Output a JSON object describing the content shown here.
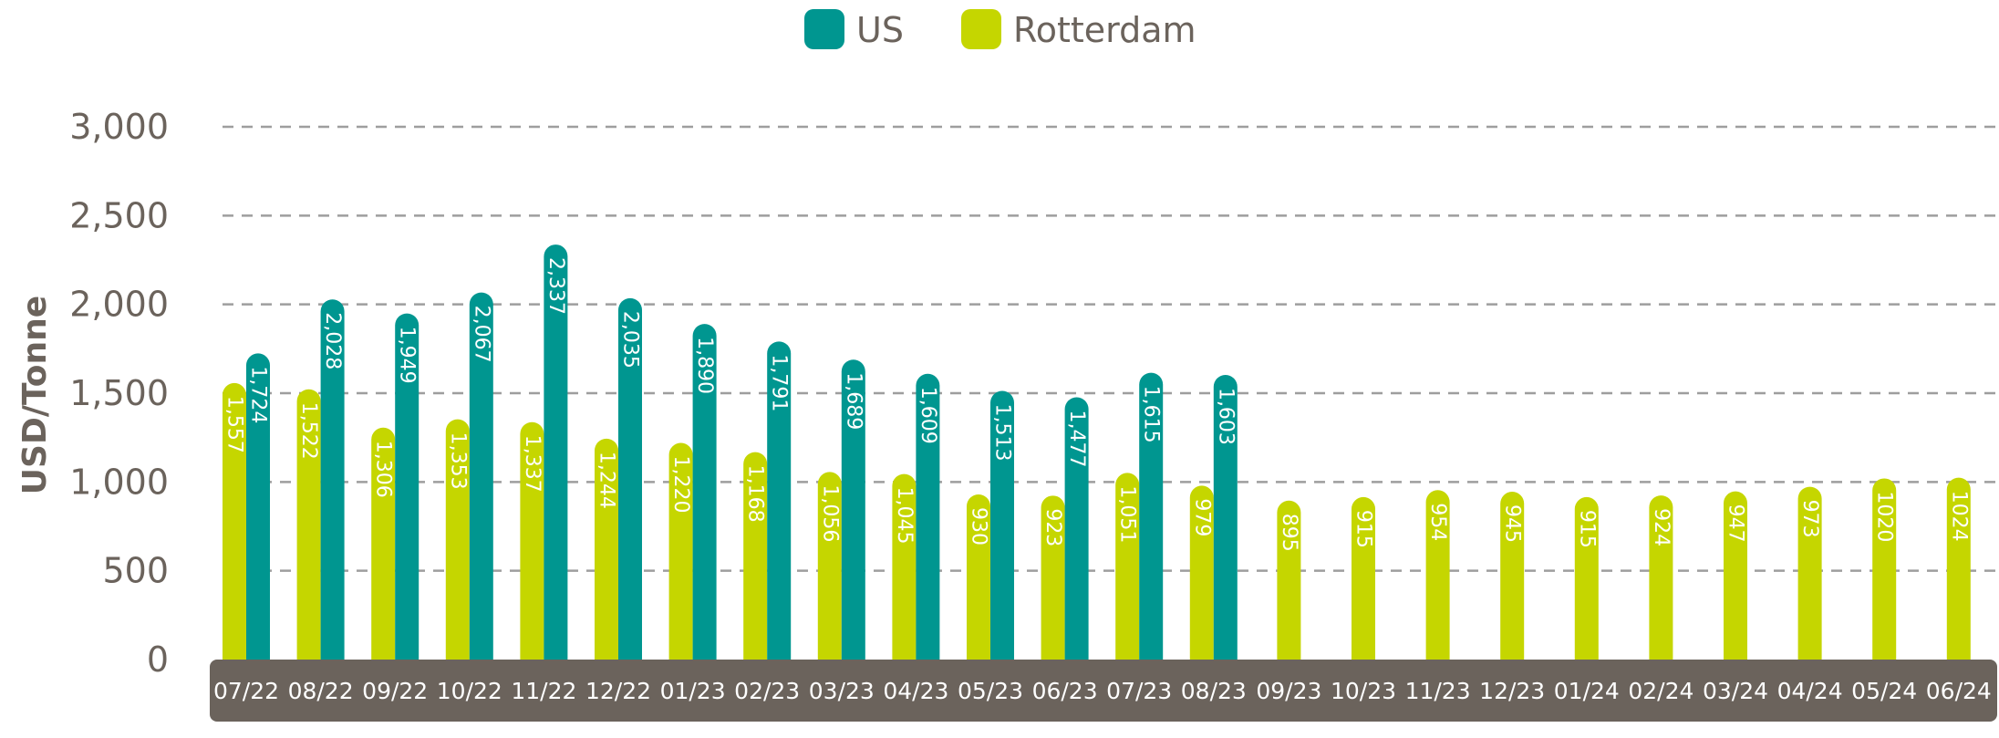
{
  "chart_data": {
    "type": "bar",
    "title": "",
    "xlabel": "",
    "ylabel": "USD/Tonne",
    "ylim": [
      0,
      3000
    ],
    "yticks": [
      0,
      500,
      1000,
      1500,
      2000,
      2500,
      3000
    ],
    "ytick_labels": [
      "0",
      "500",
      "1,000",
      "1,500",
      "2,000",
      "2,500",
      "3,000"
    ],
    "grid": true,
    "legend_position": "top-center",
    "categories": [
      "07/22",
      "08/22",
      "09/22",
      "10/22",
      "11/22",
      "12/22",
      "01/23",
      "02/23",
      "03/23",
      "04/23",
      "05/23",
      "06/23",
      "07/23",
      "08/23",
      "09/23",
      "10/23",
      "11/23",
      "12/23",
      "01/24",
      "02/24",
      "03/24",
      "04/24",
      "05/24",
      "06/24"
    ],
    "series": [
      {
        "name": "Rotterdam",
        "color": "#c5d600",
        "values": [
          1557,
          1522,
          1306,
          1353,
          1337,
          1244,
          1220,
          1168,
          1056,
          1045,
          930,
          923,
          1051,
          979,
          895,
          915,
          954,
          945,
          915,
          924,
          947,
          973,
          1020,
          1024
        ],
        "labels": [
          "1,557",
          "1,522",
          "1,306",
          "1,353",
          "1,337",
          "1,244",
          "1,220",
          "1,168",
          "1,056",
          "1,045",
          "930",
          "923",
          "1,051",
          "979",
          "895",
          "915",
          "954",
          "945",
          "915",
          "924",
          "947",
          "973",
          "1020",
          "1024"
        ]
      },
      {
        "name": "US",
        "color": "#009690",
        "values": [
          1724,
          2028,
          1949,
          2067,
          2337,
          2035,
          1890,
          1791,
          1689,
          1609,
          1513,
          1477,
          1615,
          1603,
          null,
          null,
          null,
          null,
          null,
          null,
          null,
          null,
          null,
          null
        ],
        "labels": [
          "1,724",
          "2,028",
          "1,949",
          "2,067",
          "2,337",
          "2,035",
          "1,890",
          "1,791",
          "1,689",
          "1,609",
          "1,513",
          "1,477",
          "1,615",
          "1,603",
          "",
          "",
          "",
          "",
          "",
          "",
          "",
          "",
          "",
          ""
        ]
      }
    ],
    "legend": [
      {
        "name": "US",
        "color": "#009690"
      },
      {
        "name": "Rotterdam",
        "color": "#c5d600"
      }
    ],
    "colors": {
      "axis_band": "#6b635c",
      "gridline": "#9e9e9e",
      "text": "#6b635c"
    }
  }
}
